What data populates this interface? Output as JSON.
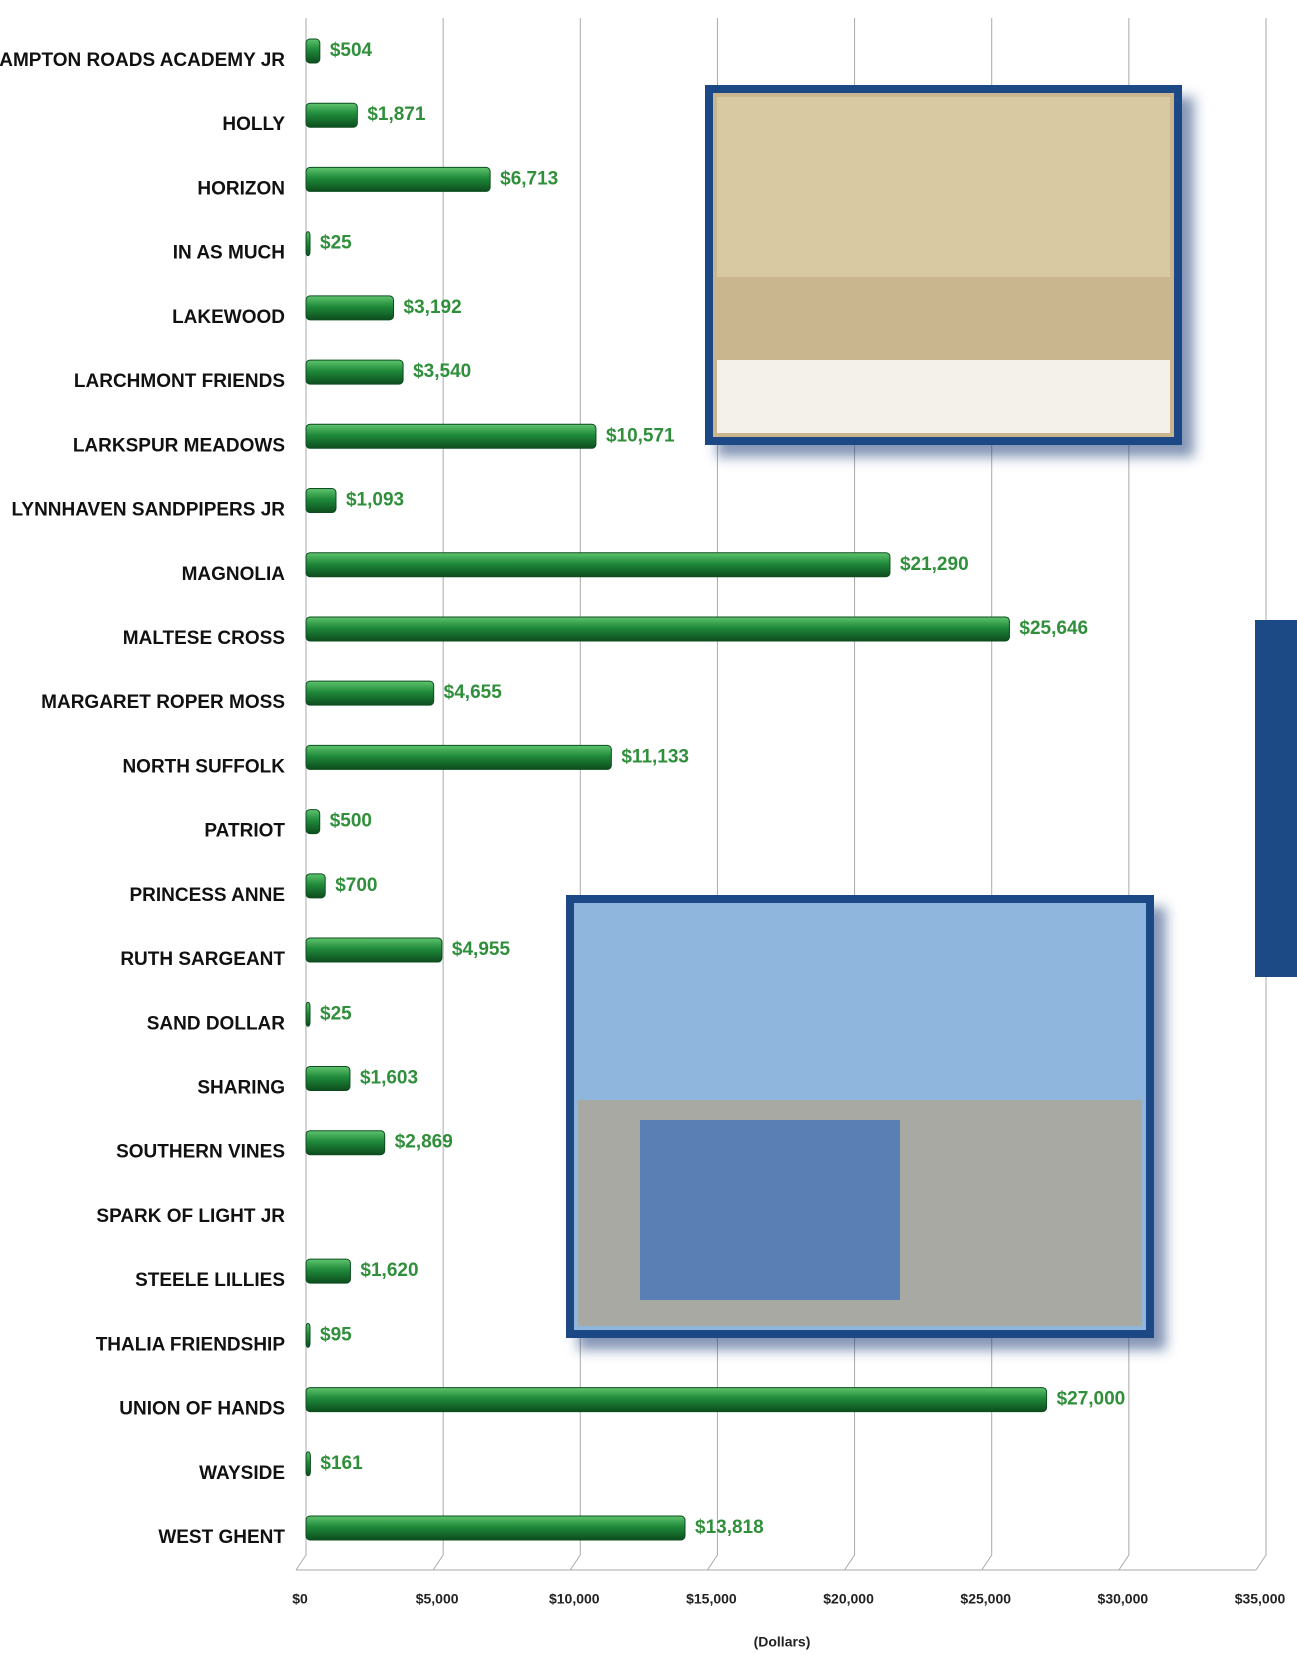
{
  "chart_data": {
    "type": "bar",
    "orientation": "horizontal",
    "categories": [
      "HAMPTON ROADS ACADEMY JR",
      "HOLLY",
      "HORIZON",
      "IN AS MUCH",
      "LAKEWOOD",
      "LARCHMONT FRIENDS",
      "LARKSPUR MEADOWS",
      "LYNNHAVEN SANDPIPERS JR",
      "MAGNOLIA",
      "MALTESE CROSS",
      "MARGARET ROPER MOSS",
      "NORTH SUFFOLK",
      "PATRIOT",
      "PRINCESS ANNE",
      "RUTH SARGEANT",
      "SAND DOLLAR",
      "SHARING",
      "SOUTHERN VINES",
      "SPARK OF LIGHT JR",
      "STEELE LILLIES",
      "THALIA FRIENDSHIP",
      "UNION OF HANDS",
      "WAYSIDE",
      "WEST GHENT"
    ],
    "values": [
      504,
      1871,
      6713,
      25,
      3192,
      3540,
      10571,
      1093,
      21290,
      25646,
      4655,
      11133,
      500,
      700,
      4955,
      25,
      1603,
      2869,
      null,
      1620,
      95,
      27000,
      161,
      13818
    ],
    "value_labels": [
      "$504",
      "$1,871",
      "$6,713",
      "$25",
      "$3,192",
      "$3,540",
      "$10,571",
      "$1,093",
      "$21,290",
      "$25,646",
      "$4,655",
      "$11,133",
      "$500",
      "$700",
      "$4,955",
      "$25",
      "$1,603",
      "$2,869",
      null,
      "$1,620",
      "$95",
      "$27,000",
      "$161",
      "$13,818"
    ],
    "color": "#1f8a3a",
    "xlim": [
      0,
      35000
    ],
    "xticks": [
      {
        "value": 0,
        "label": "$0"
      },
      {
        "value": 5000,
        "label": "$5,000"
      },
      {
        "value": 10000,
        "label": "$10,000"
      },
      {
        "value": 15000,
        "label": "$15,000"
      },
      {
        "value": 20000,
        "label": "$20,000"
      },
      {
        "value": 25000,
        "label": "$25,000"
      },
      {
        "value": 30000,
        "label": "$30,000"
      },
      {
        "value": 35000,
        "label": "$35,000"
      }
    ],
    "xlabel": "(Dollars)",
    "grid": true
  }
}
